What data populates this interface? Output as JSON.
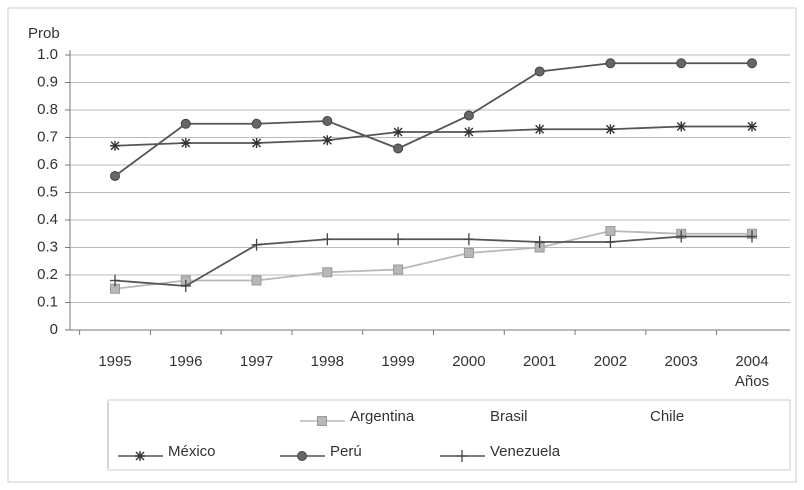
{
  "chart_data": {
    "type": "line",
    "y_label": "Prob",
    "x_label": "Años",
    "categories": [
      "1995",
      "1996",
      "1997",
      "1998",
      "1999",
      "2000",
      "2001",
      "2002",
      "2003",
      "2004"
    ],
    "ylim": [
      0,
      1
    ],
    "yticks": [
      0,
      0.1,
      0.2,
      0.3,
      0.4,
      0.5,
      0.6,
      0.7,
      0.8,
      0.9,
      {
        "value": 1,
        "label": "1.0"
      }
    ],
    "grid": true,
    "series": [
      {
        "name": "Argentina",
        "color": "#b8b8b8",
        "marker": "square",
        "values": [
          0.15,
          0.18,
          0.18,
          0.21,
          0.22,
          0.28,
          0.3,
          0.36,
          0.35,
          0.35
        ]
      },
      {
        "name": "Brasil",
        "color": "#777777",
        "marker": "none",
        "values": [
          null,
          null,
          null,
          null,
          null,
          null,
          null,
          null,
          null,
          null
        ]
      },
      {
        "name": "Chile",
        "color": "#777777",
        "marker": "none",
        "values": [
          null,
          null,
          null,
          null,
          null,
          null,
          null,
          null,
          null,
          null
        ]
      },
      {
        "name": "México",
        "color": "#555555",
        "marker": "asterisk",
        "values": [
          0.67,
          0.68,
          0.68,
          0.69,
          0.72,
          0.72,
          0.73,
          0.73,
          0.74,
          0.74
        ]
      },
      {
        "name": "Perú",
        "color": "#555555",
        "marker": "circle",
        "values": [
          0.56,
          0.75,
          0.75,
          0.76,
          0.66,
          0.78,
          0.94,
          0.97,
          0.97,
          0.97
        ]
      },
      {
        "name": "Venezuela",
        "color": "#555555",
        "marker": "plus",
        "values": [
          0.18,
          0.16,
          0.31,
          0.33,
          0.33,
          0.33,
          0.32,
          0.32,
          0.34,
          0.34
        ]
      }
    ]
  }
}
